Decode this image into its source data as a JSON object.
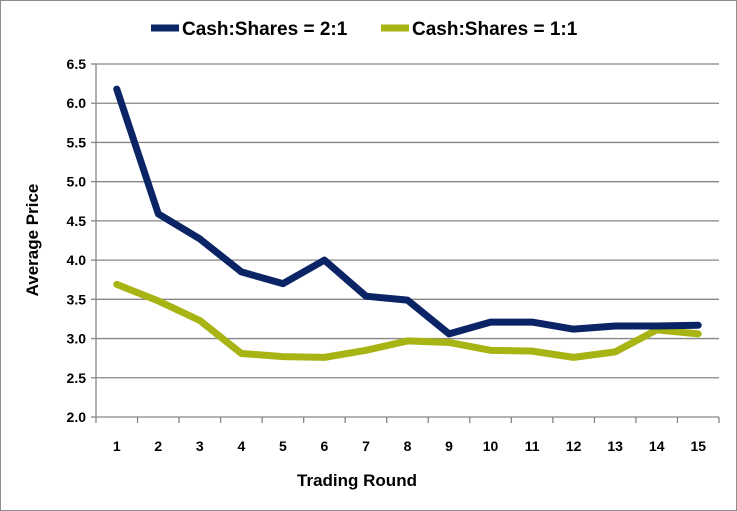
{
  "chart_data": {
    "type": "line",
    "title": "",
    "xlabel": "Trading Round",
    "ylabel": "Average Price",
    "categories": [
      "1",
      "2",
      "3",
      "4",
      "5",
      "6",
      "7",
      "8",
      "9",
      "10",
      "11",
      "12",
      "13",
      "14",
      "15"
    ],
    "ylim": [
      2.0,
      6.5
    ],
    "yticks": [
      "2.0",
      "2.5",
      "3.0",
      "3.5",
      "4.0",
      "4.5",
      "5.0",
      "5.5",
      "6.0",
      "6.5"
    ],
    "grid": true,
    "legend_position": "top",
    "series": [
      {
        "name": "Cash:Shares = 2:1",
        "color": "#0a2466",
        "values": [
          6.18,
          4.59,
          4.27,
          3.85,
          3.7,
          4.0,
          3.54,
          3.49,
          3.06,
          3.21,
          3.21,
          3.12,
          3.16,
          3.16,
          3.17
        ]
      },
      {
        "name": "Cash:Shares = 1:1",
        "color": "#a8b414",
        "values": [
          3.69,
          3.48,
          3.23,
          2.81,
          2.77,
          2.76,
          2.85,
          2.97,
          2.95,
          2.85,
          2.84,
          2.76,
          2.83,
          3.11,
          3.06
        ]
      }
    ]
  }
}
